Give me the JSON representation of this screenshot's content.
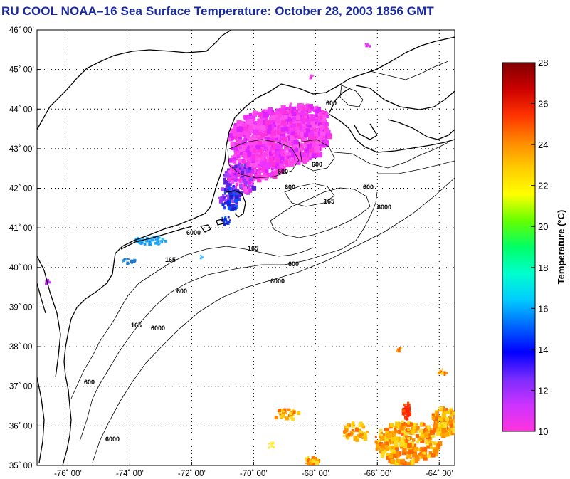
{
  "title": "RU COOL  NOAA–16  Sea Surface Temperature:  October 28, 2003 1856 GMT",
  "map": {
    "lon_labels": [
      "-76˚ 00’",
      "-74˚ 00’",
      "-72˚ 00’",
      "-70˚ 00’",
      "-68˚ 00’",
      "-66˚ 00’",
      "-64˚ 00’"
    ],
    "lat_labels": [
      "46˚ 00’",
      "45˚ 00’",
      "44˚ 00’",
      "43˚ 00’",
      "42˚ 00’",
      "41˚ 00’",
      "40˚ 00’",
      "39˚ 00’",
      "38˚ 00’",
      "37˚ 00’",
      "36˚ 00’",
      "35˚ 00’"
    ],
    "lon_range": [
      -77,
      -63.5
    ],
    "lat_range": [
      35,
      46
    ],
    "grid": true,
    "isobath_labels": [
      "600",
      "600",
      "600",
      "600",
      "600",
      "600",
      "600",
      "165",
      "165",
      "165",
      "165",
      "6000",
      "6000",
      "6000",
      "6000",
      "600",
      "6000"
    ]
  },
  "colorbar": {
    "title": "Temperature (°C)",
    "ticks": [
      "10",
      "12",
      "14",
      "16",
      "18",
      "20",
      "22",
      "24",
      "26",
      "28"
    ],
    "range": [
      10,
      28
    ],
    "colors": [
      "#ff33dd",
      "#cc33ff",
      "#7a2cff",
      "#0000ff",
      "#0066ff",
      "#00ccff",
      "#00ffcc",
      "#00ff66",
      "#66ff00",
      "#ffff00",
      "#ffcc00",
      "#ff8800",
      "#ff3300",
      "#cc0000",
      "#800000"
    ]
  }
}
